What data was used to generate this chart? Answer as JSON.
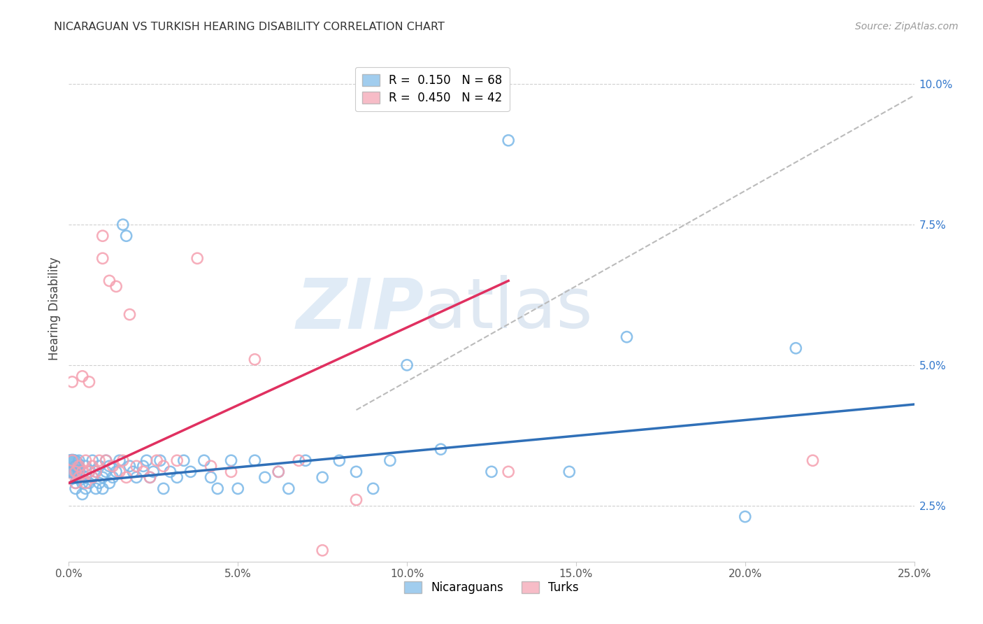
{
  "title": "NICARAGUAN VS TURKISH HEARING DISABILITY CORRELATION CHART",
  "source": "Source: ZipAtlas.com",
  "ylabel": "Hearing Disability",
  "xlabel": "",
  "xlim": [
    0.0,
    0.25
  ],
  "ylim": [
    0.015,
    0.105
  ],
  "xtick_labels": [
    "0.0%",
    "5.0%",
    "10.0%",
    "15.0%",
    "20.0%",
    "25.0%"
  ],
  "xtick_values": [
    0.0,
    0.05,
    0.1,
    0.15,
    0.2,
    0.25
  ],
  "ytick_labels": [
    "2.5%",
    "5.0%",
    "7.5%",
    "10.0%"
  ],
  "ytick_values": [
    0.025,
    0.05,
    0.075,
    0.1
  ],
  "blue_color": "#7ab8e8",
  "pink_color": "#f5a0b0",
  "blue_line_color": "#3070b8",
  "pink_line_color": "#e03060",
  "dashed_line_color": "#bbbbbb",
  "watermark_zip": "ZIP",
  "watermark_atlas": "atlas",
  "legend_blue_r": "0.150",
  "legend_blue_n": "68",
  "legend_pink_r": "0.450",
  "legend_pink_n": "42",
  "blue_label": "Nicaraguans",
  "pink_label": "Turks",
  "blue_regression": [
    0.0,
    0.25,
    0.029,
    0.043
  ],
  "pink_regression": [
    0.0,
    0.13,
    0.029,
    0.065
  ],
  "dashed_line": [
    0.085,
    0.25,
    0.042,
    0.098
  ],
  "nicaraguan_x": [
    0.001,
    0.001,
    0.002,
    0.002,
    0.002,
    0.003,
    0.003,
    0.003,
    0.004,
    0.004,
    0.005,
    0.005,
    0.005,
    0.006,
    0.006,
    0.007,
    0.007,
    0.008,
    0.008,
    0.009,
    0.009,
    0.01,
    0.01,
    0.011,
    0.011,
    0.012,
    0.012,
    0.013,
    0.014,
    0.015,
    0.016,
    0.017,
    0.018,
    0.019,
    0.02,
    0.022,
    0.023,
    0.024,
    0.025,
    0.027,
    0.028,
    0.03,
    0.032,
    0.034,
    0.036,
    0.04,
    0.042,
    0.044,
    0.048,
    0.05,
    0.055,
    0.058,
    0.062,
    0.065,
    0.07,
    0.075,
    0.08,
    0.085,
    0.09,
    0.095,
    0.1,
    0.11,
    0.125,
    0.13,
    0.148,
    0.165,
    0.2,
    0.215
  ],
  "nicaraguan_y": [
    0.033,
    0.031,
    0.032,
    0.029,
    0.028,
    0.03,
    0.033,
    0.031,
    0.029,
    0.027,
    0.032,
    0.03,
    0.028,
    0.031,
    0.029,
    0.033,
    0.03,
    0.028,
    0.031,
    0.029,
    0.032,
    0.03,
    0.028,
    0.033,
    0.031,
    0.029,
    0.032,
    0.03,
    0.031,
    0.033,
    0.075,
    0.073,
    0.032,
    0.031,
    0.03,
    0.032,
    0.033,
    0.03,
    0.031,
    0.033,
    0.028,
    0.031,
    0.03,
    0.033,
    0.031,
    0.033,
    0.03,
    0.028,
    0.033,
    0.028,
    0.033,
    0.03,
    0.031,
    0.028,
    0.033,
    0.03,
    0.033,
    0.031,
    0.028,
    0.033,
    0.05,
    0.035,
    0.031,
    0.09,
    0.031,
    0.055,
    0.023,
    0.053
  ],
  "turkish_x": [
    0.001,
    0.001,
    0.002,
    0.002,
    0.003,
    0.003,
    0.004,
    0.004,
    0.005,
    0.005,
    0.006,
    0.006,
    0.007,
    0.007,
    0.008,
    0.009,
    0.01,
    0.01,
    0.011,
    0.012,
    0.013,
    0.014,
    0.015,
    0.016,
    0.017,
    0.018,
    0.02,
    0.022,
    0.024,
    0.026,
    0.028,
    0.032,
    0.038,
    0.042,
    0.048,
    0.055,
    0.062,
    0.068,
    0.075,
    0.085,
    0.13,
    0.22
  ],
  "turkish_y": [
    0.033,
    0.047,
    0.031,
    0.029,
    0.03,
    0.032,
    0.048,
    0.031,
    0.029,
    0.033,
    0.047,
    0.031,
    0.03,
    0.032,
    0.031,
    0.033,
    0.073,
    0.069,
    0.033,
    0.065,
    0.032,
    0.064,
    0.031,
    0.033,
    0.03,
    0.059,
    0.032,
    0.031,
    0.03,
    0.033,
    0.032,
    0.033,
    0.069,
    0.032,
    0.031,
    0.051,
    0.031,
    0.033,
    0.017,
    0.026,
    0.031,
    0.033
  ],
  "scatter_size": 120
}
